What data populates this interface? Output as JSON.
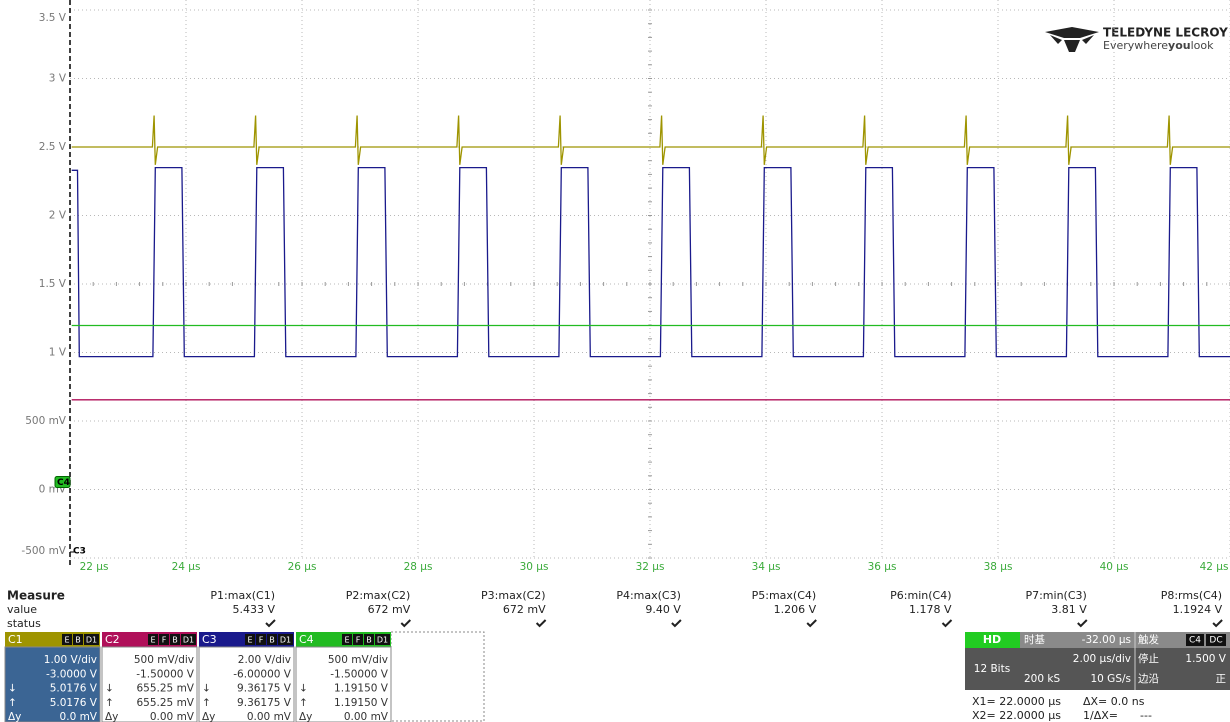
{
  "logo": {
    "brand": "TELEDYNE LECROY",
    "tagline": [
      "Everywhere",
      "you",
      "look"
    ]
  },
  "chart_data": {
    "type": "line",
    "xlim": [
      22,
      42
    ],
    "ylim": [
      -0.5,
      3.5
    ],
    "grid": true,
    "xticks": [
      {
        "value": 22,
        "label": "22 µs"
      },
      {
        "value": 24,
        "label": "24 µs"
      },
      {
        "value": 26,
        "label": "26 µs"
      },
      {
        "value": 28,
        "label": "28 µs"
      },
      {
        "value": 30,
        "label": "30 µs"
      },
      {
        "value": 32,
        "label": "32 µs"
      },
      {
        "value": 34,
        "label": "34 µs"
      },
      {
        "value": 36,
        "label": "36 µs"
      },
      {
        "value": 38,
        "label": "38 µs"
      },
      {
        "value": 40,
        "label": "40 µs"
      },
      {
        "value": 42,
        "label": "42 µs"
      }
    ],
    "yticks": [
      {
        "value": -0.5,
        "label": "-500 mV"
      },
      {
        "value": 0,
        "label": "0 mV"
      },
      {
        "value": 0.5,
        "label": "500 mV"
      },
      {
        "value": 1,
        "label": "1 V"
      },
      {
        "value": 1.5,
        "label": "1.5 V"
      },
      {
        "value": 2,
        "label": "2 V"
      },
      {
        "value": 2.5,
        "label": "2.5 V"
      },
      {
        "value": 3,
        "label": "3 V"
      },
      {
        "value": 3.5,
        "label": "3.5 V"
      }
    ],
    "markers": [
      {
        "label": "C4",
        "value": 0
      },
      {
        "label": "C3",
        "value": -0.5
      }
    ],
    "series": [
      {
        "name": "C1",
        "color": "#9e9400",
        "x": [
          22.03,
          23.42,
          23.45,
          23.47,
          23.51,
          25.17,
          25.2,
          25.22,
          25.26,
          26.92,
          26.95,
          26.97,
          27.01,
          28.67,
          28.7,
          28.72,
          28.76,
          30.42,
          30.45,
          30.47,
          30.51,
          32.17,
          32.2,
          32.22,
          32.26,
          33.92,
          33.95,
          33.97,
          34.01,
          35.67,
          35.7,
          35.72,
          35.76,
          37.42,
          37.45,
          37.47,
          37.51,
          39.17,
          39.2,
          39.22,
          39.26,
          40.92,
          40.95,
          40.97,
          41.01,
          42
        ],
        "values": [
          2.5,
          2.5,
          2.73,
          2.37,
          2.5,
          2.5,
          2.73,
          2.37,
          2.5,
          2.5,
          2.73,
          2.37,
          2.5,
          2.5,
          2.73,
          2.37,
          2.5,
          2.5,
          2.73,
          2.37,
          2.5,
          2.5,
          2.73,
          2.37,
          2.5,
          2.5,
          2.73,
          2.37,
          2.5,
          2.5,
          2.73,
          2.37,
          2.5,
          2.5,
          2.73,
          2.37,
          2.5,
          2.5,
          2.73,
          2.37,
          2.5,
          2.5,
          2.73,
          2.37,
          2.5,
          2.5
        ]
      },
      {
        "name": "C2",
        "color": "#b0105a",
        "x": [
          22.03,
          42
        ],
        "values": [
          0.655,
          0.655
        ]
      },
      {
        "name": "C3",
        "color": "#1a1a8c",
        "x": [
          22.03,
          22.13,
          22.16,
          23.43,
          23.47,
          23.93,
          23.97,
          25.18,
          25.22,
          25.68,
          25.72,
          26.93,
          26.97,
          27.43,
          27.47,
          28.68,
          28.72,
          29.18,
          29.22,
          30.43,
          30.47,
          30.93,
          30.97,
          32.18,
          32.22,
          32.68,
          32.72,
          33.93,
          33.97,
          34.43,
          34.47,
          35.68,
          35.72,
          36.18,
          36.22,
          37.43,
          37.47,
          37.93,
          37.97,
          39.18,
          39.22,
          39.68,
          39.72,
          40.93,
          40.97,
          41.43,
          41.47,
          42
        ],
        "values": [
          2.33,
          2.33,
          0.97,
          0.97,
          2.35,
          2.35,
          0.97,
          0.97,
          2.35,
          2.35,
          0.97,
          0.97,
          2.35,
          2.35,
          0.97,
          0.97,
          2.35,
          2.35,
          0.97,
          0.97,
          2.35,
          2.35,
          0.97,
          0.97,
          2.35,
          2.35,
          0.97,
          0.97,
          2.35,
          2.35,
          0.97,
          0.97,
          2.35,
          2.35,
          0.97,
          0.97,
          2.35,
          2.35,
          0.97,
          0.97,
          2.35,
          2.35,
          0.97,
          0.97,
          2.35,
          2.35,
          0.97,
          0.97
        ]
      },
      {
        "name": "C4",
        "color": "#22bb22",
        "x": [
          22.03,
          42
        ],
        "values": [
          1.197,
          1.197
        ]
      }
    ]
  },
  "measure": {
    "title": "Measure",
    "row_labels": [
      "value",
      "status"
    ],
    "columns": [
      {
        "name": "P1:max(C1)",
        "value": "5.433 V"
      },
      {
        "name": "P2:max(C2)",
        "value": "672 mV"
      },
      {
        "name": "P3:max(C2)",
        "value": "672 mV"
      },
      {
        "name": "P4:max(C3)",
        "value": "9.40 V"
      },
      {
        "name": "P5:max(C4)",
        "value": "1.206 V"
      },
      {
        "name": "P6:min(C4)",
        "value": "1.178 V"
      },
      {
        "name": "P7:min(C3)",
        "value": "3.81 V"
      },
      {
        "name": "P8:rms(C4)",
        "value": "1.1924 V"
      }
    ]
  },
  "row_symbols": [
    "↓",
    "↑",
    "Δy"
  ],
  "channels": [
    {
      "tags": [
        "E",
        "B",
        "D1"
      ],
      "scale": "1.00 V/div",
      "offset": "-3.0000 V",
      "cursor1": "5.0176 V",
      "cursor2": "5.0176 V",
      "delta": "0.0 mV"
    },
    {
      "tags": [
        "E",
        "F",
        "B",
        "D1"
      ],
      "scale": "500 mV/div",
      "offset": "-1.50000 V",
      "cursor1": "655.25 mV",
      "cursor2": "655.25 mV",
      "delta": "0.00 mV"
    },
    {
      "tags": [
        "E",
        "F",
        "B",
        "D1"
      ],
      "scale": "2.00 V/div",
      "offset": "-6.00000 V",
      "cursor1": "9.36175 V",
      "cursor2": "9.36175 V",
      "delta": "0.00 mV"
    },
    {
      "tags": [
        "E",
        "F",
        "B",
        "D1"
      ],
      "scale": "500 mV/div",
      "offset": "-1.50000 V",
      "cursor1": "1.19150 V",
      "cursor2": "1.19150 V",
      "delta": "0.00 mV"
    }
  ],
  "timebase": {
    "mode": "HD",
    "bits": "12 Bits",
    "label": "时基",
    "delay": "-32.00 µs",
    "scale": "2.00 µs/div",
    "points": "200 kS",
    "rate": "10 GS/s"
  },
  "trigger": {
    "label": "触发",
    "source": "C4",
    "coupling": "DC",
    "state": "停止",
    "level": "1.500 V",
    "type": "边沿",
    "slope": "正"
  },
  "cursors": {
    "x1": "X1= 22.0000 µs",
    "dx": "ΔX= 0.0 ns",
    "x2": "X2= 22.0000 µs",
    "inv": "1/ΔX=",
    "inv_value": "---"
  }
}
